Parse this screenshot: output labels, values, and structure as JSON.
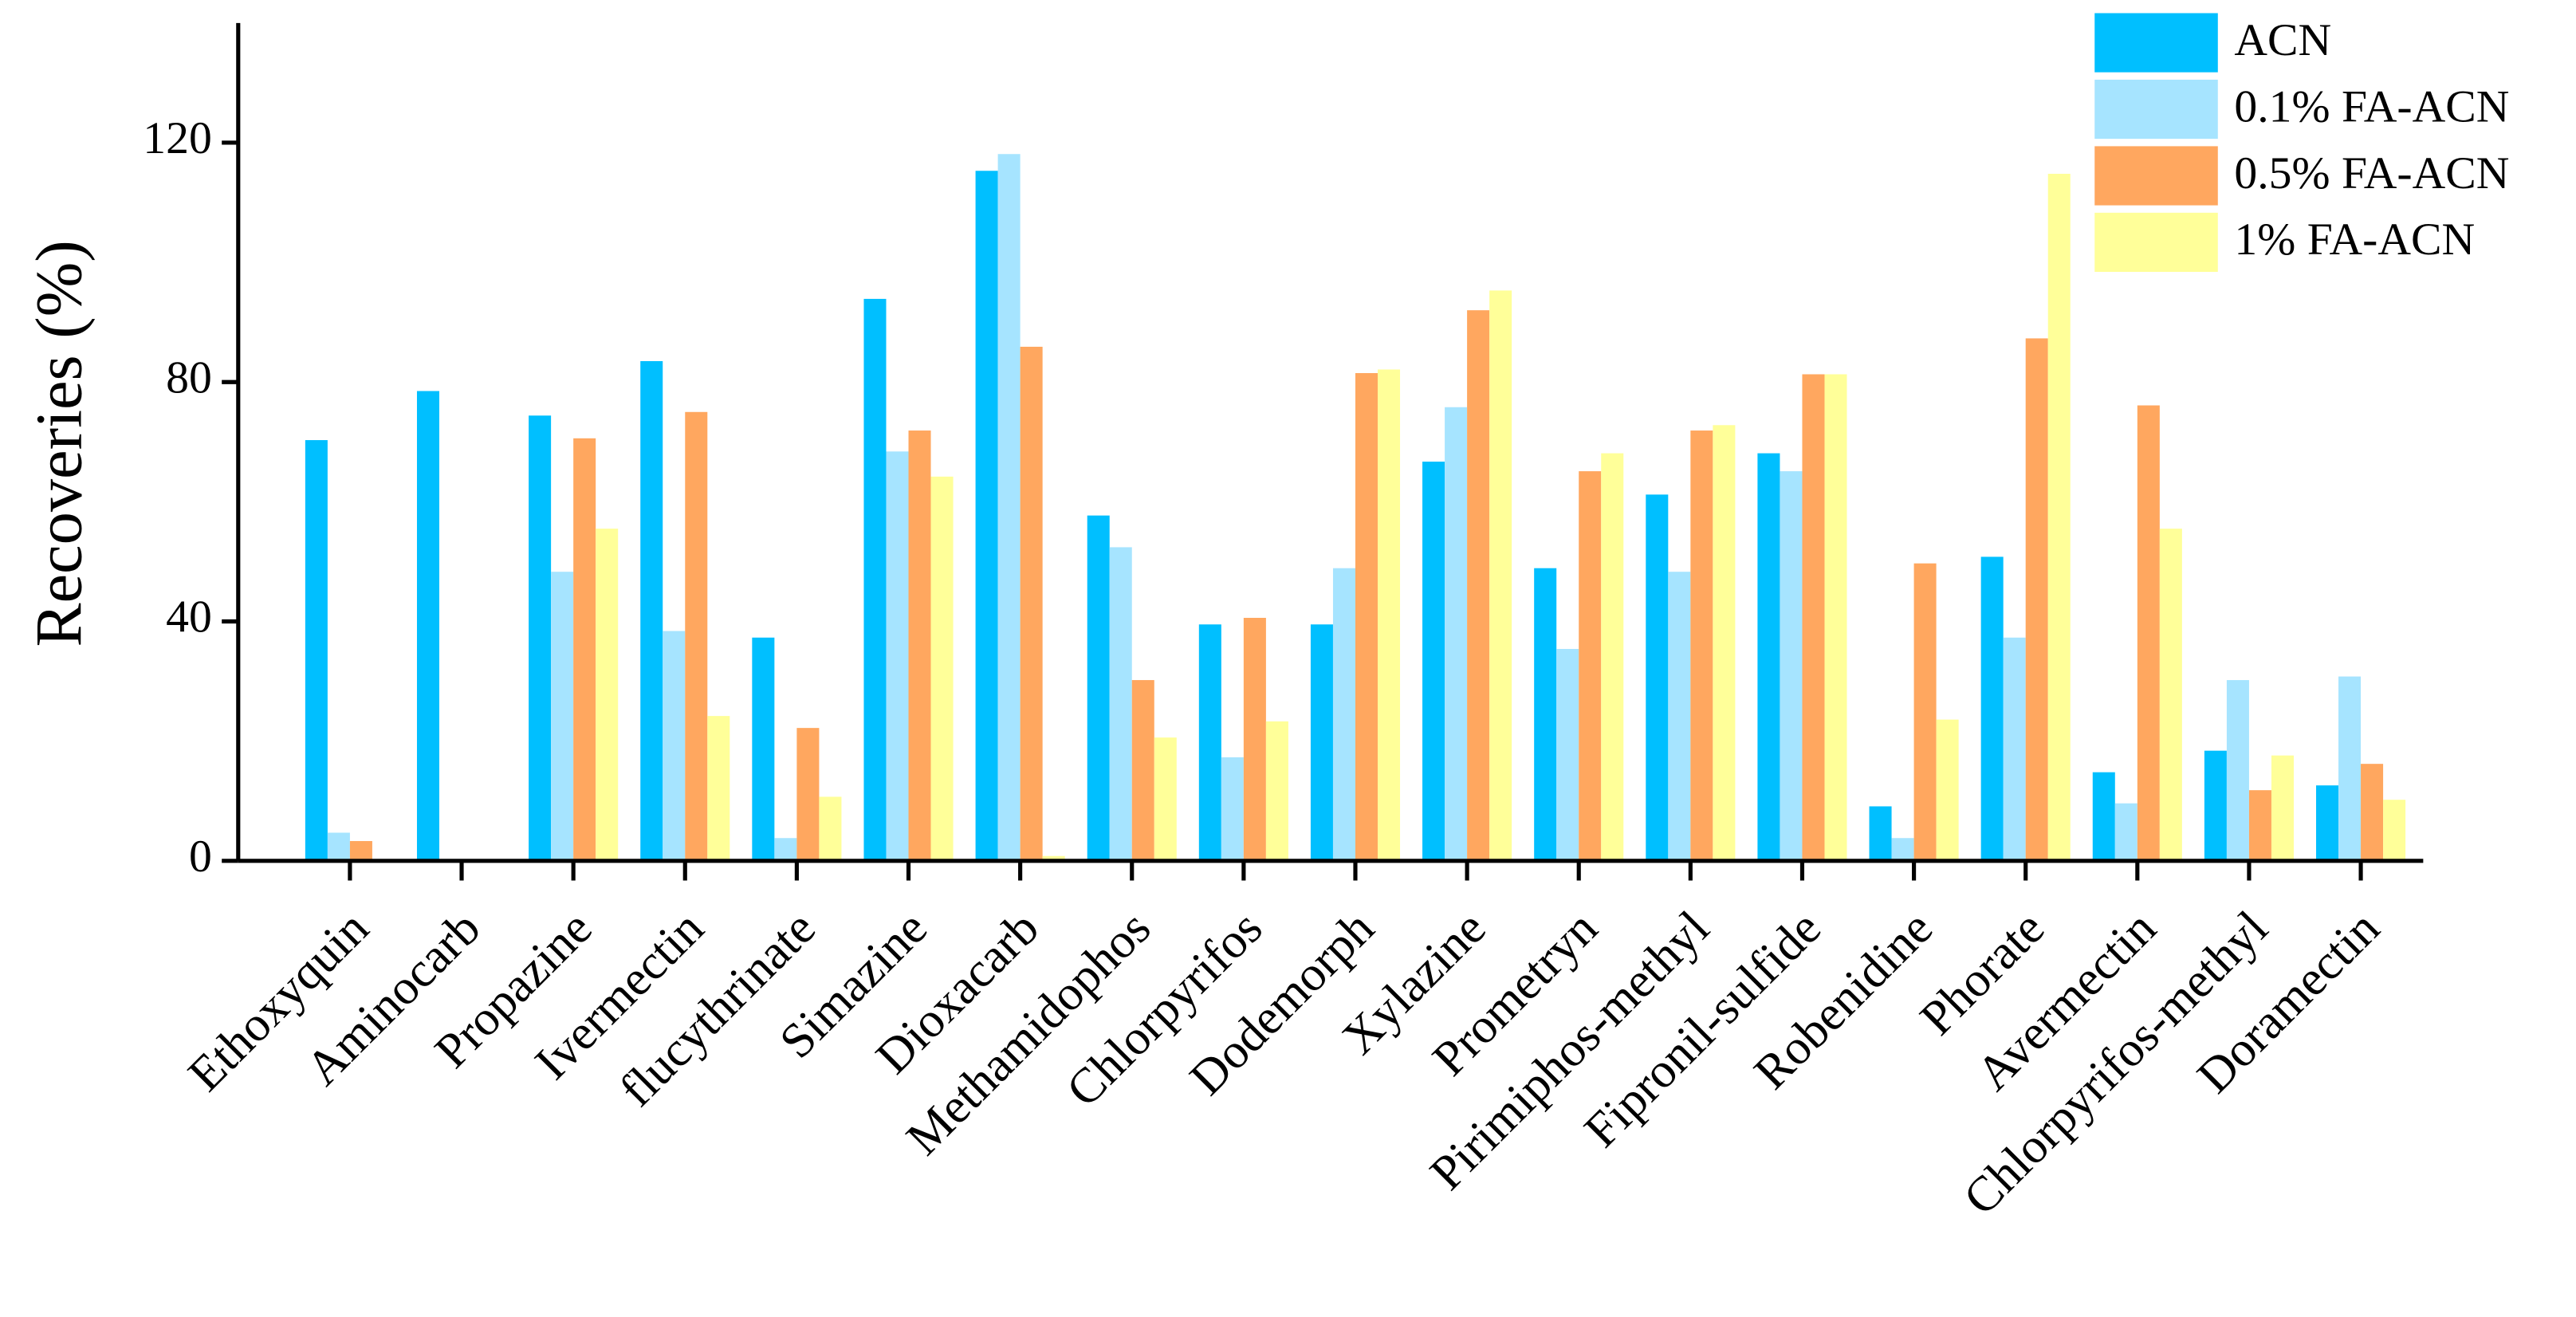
{
  "chart_data": {
    "type": "bar",
    "y_label": "Recoveries (%)",
    "categories": [
      "Ethoxyquin",
      "Aminocarb",
      "Propazine",
      "Ivermectin",
      "flucythrinate",
      "Simazine",
      "Dioxacarb",
      "Methamidophos",
      "Chlorpyrifos",
      "Dodemorph",
      "Xylazine",
      "Prometryn",
      "Pirimiphos-methyl",
      "Fipronil-sulfide",
      "Robenidine",
      "Phorate",
      "Avermectin",
      "Chlorpyrifos-methyl",
      "Doramectin"
    ],
    "series": [
      {
        "name": "ACN",
        "color": "#00bfff",
        "values": [
          70.3,
          78.5,
          74.4,
          83.5,
          37.3,
          93.9,
          115.3,
          57.7,
          39.5,
          39.5,
          66.7,
          48.9,
          61.2,
          68.1,
          9.1,
          50.8,
          14.8,
          18.4,
          12.6
        ]
      },
      {
        "name": "0.1% FA-ACN",
        "color": "#a6e4ff",
        "values": [
          4.7,
          0,
          48.3,
          38.4,
          3.8,
          68.4,
          118.1,
          52.4,
          17.3,
          48.9,
          75.8,
          35.4,
          48.3,
          65.1,
          3.8,
          37.3,
          9.6,
          30.2,
          30.8
        ]
      },
      {
        "name": "0.5% FA-ACN",
        "color": "#ffa75f",
        "values": [
          3.3,
          0,
          70.6,
          75.0,
          22.2,
          71.9,
          85.9,
          30.2,
          40.6,
          81.5,
          92.0,
          65.1,
          71.9,
          81.3,
          49.7,
          87.3,
          76.1,
          11.8,
          16.2
        ]
      },
      {
        "name": "1% FA-ACN",
        "color": "#ffff99",
        "values": [
          0,
          0,
          55.5,
          24.2,
          10.7,
          64.2,
          0.8,
          20.6,
          23.3,
          82.1,
          95.3,
          68.1,
          72.8,
          81.3,
          23.6,
          114.8,
          55.5,
          17.6,
          10.2
        ]
      }
    ],
    "ylim": [
      0,
      140
    ],
    "yticks": [
      0,
      40,
      80,
      120
    ],
    "grid": false,
    "legend": "top-right"
  }
}
